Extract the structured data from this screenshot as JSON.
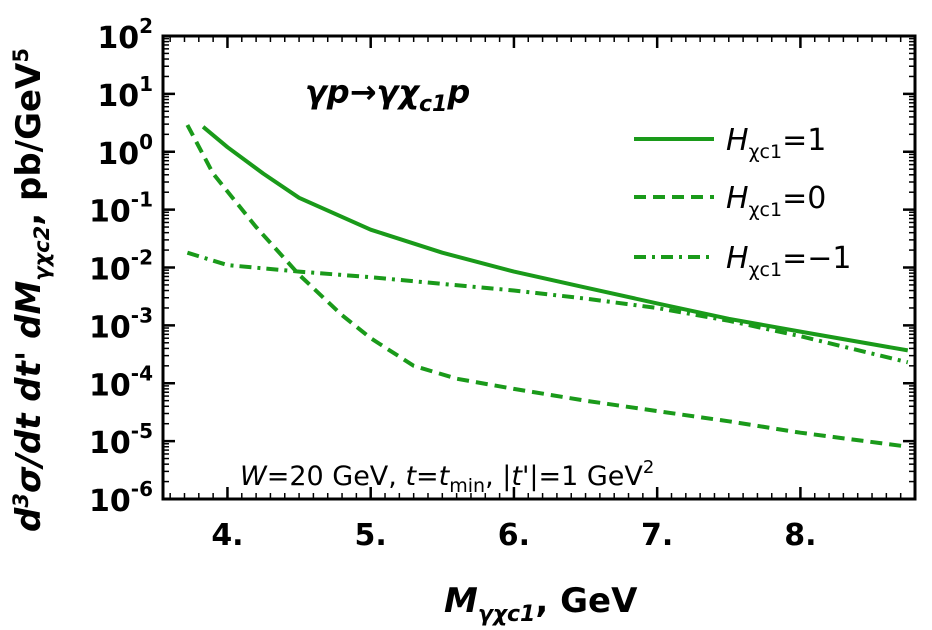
{
  "chart_data": {
    "type": "line",
    "title": "γp→γχc1p",
    "xlabel": "Mγχc1, GeV",
    "ylabel": "d3σ/dt dt' dMγχc2, pb/GeV5",
    "xlim": [
      3.55,
      8.8
    ],
    "ylim": [
      1e-06,
      100
    ],
    "yscale": "log",
    "x_ticks": [
      4,
      5,
      6,
      7,
      8
    ],
    "x_tick_labels": [
      "4.",
      "5.",
      "6.",
      "7.",
      "8."
    ],
    "y_ticks": [
      1e-06,
      1e-05,
      0.0001,
      0.001,
      0.01,
      0.1,
      1,
      10,
      100
    ],
    "y_tick_labels": [
      {
        "base": "10",
        "exp": "-6"
      },
      {
        "base": "10",
        "exp": "-5"
      },
      {
        "base": "10",
        "exp": "-4"
      },
      {
        "base": "10",
        "exp": "-3"
      },
      {
        "base": "10",
        "exp": "-2"
      },
      {
        "base": "10",
        "exp": "-1"
      },
      {
        "base": "10",
        "exp": "0"
      },
      {
        "base": "10",
        "exp": "1"
      },
      {
        "base": "10",
        "exp": "2"
      }
    ],
    "grid": false,
    "legend_position": "top-right",
    "color": "#1a9a1a",
    "series": [
      {
        "name": "Hχc1=1",
        "style": "solid",
        "x": [
          3.83,
          4.0,
          4.25,
          4.5,
          5.0,
          5.5,
          6.0,
          6.5,
          7.0,
          7.5,
          8.0,
          8.75
        ],
        "y": [
          2.7,
          1.2,
          0.42,
          0.16,
          0.045,
          0.018,
          0.0085,
          0.0045,
          0.0024,
          0.0013,
          0.00078,
          0.00037
        ]
      },
      {
        "name": "Hχc1=0",
        "style": "dashed",
        "x": [
          3.72,
          3.9,
          4.2,
          4.5,
          4.8,
          5.0,
          5.3,
          5.6,
          6.0,
          6.5,
          7.0,
          7.5,
          8.0,
          8.75
        ],
        "y": [
          2.9,
          0.42,
          0.05,
          0.0075,
          0.0015,
          0.0006,
          0.0002,
          0.00012,
          8e-05,
          5e-05,
          3.3e-05,
          2.2e-05,
          1.4e-05,
          8e-06
        ]
      },
      {
        "name": "Hχc1=−1",
        "style": "dashdot",
        "x": [
          3.72,
          4.0,
          4.5,
          5.0,
          5.5,
          6.0,
          6.5,
          7.0,
          7.5,
          8.0,
          8.75
        ],
        "y": [
          0.018,
          0.011,
          0.0085,
          0.0068,
          0.0052,
          0.004,
          0.0029,
          0.002,
          0.0012,
          0.00065,
          0.00023
        ]
      }
    ],
    "legend": [
      {
        "label_main": "H",
        "label_sub": "χc1",
        "label_rest": "=1"
      },
      {
        "label_main": "H",
        "label_sub": "χc1",
        "label_rest": "=0"
      },
      {
        "label_main": "H",
        "label_sub": "χc1",
        "label_rest": "=−1"
      }
    ],
    "reaction": {
      "p1": "γp→γχ",
      "sub": "c1",
      "p2": "p"
    },
    "annotation": {
      "w": "W",
      "w_rest": "=20 GeV, ",
      "t": "t",
      "eq": "=",
      "t2": "t",
      "t2_sub": "min",
      "abs": ", |",
      "tp": "t'",
      "abs_rest": "|=1 GeV",
      "sq": "2"
    },
    "x_axis_title": {
      "m": "M",
      "sub": "γχc1",
      "rest": ", GeV"
    },
    "y_axis_title": {
      "d": "d",
      "exp3": "3",
      "sigma": "σ/",
      "d2": "d",
      "t": "t ",
      "d3": "d",
      "tp": "t' ",
      "d4": "dM",
      "sub": "γχc2",
      "rest": ", pb/GeV",
      "exp5": "5"
    }
  }
}
